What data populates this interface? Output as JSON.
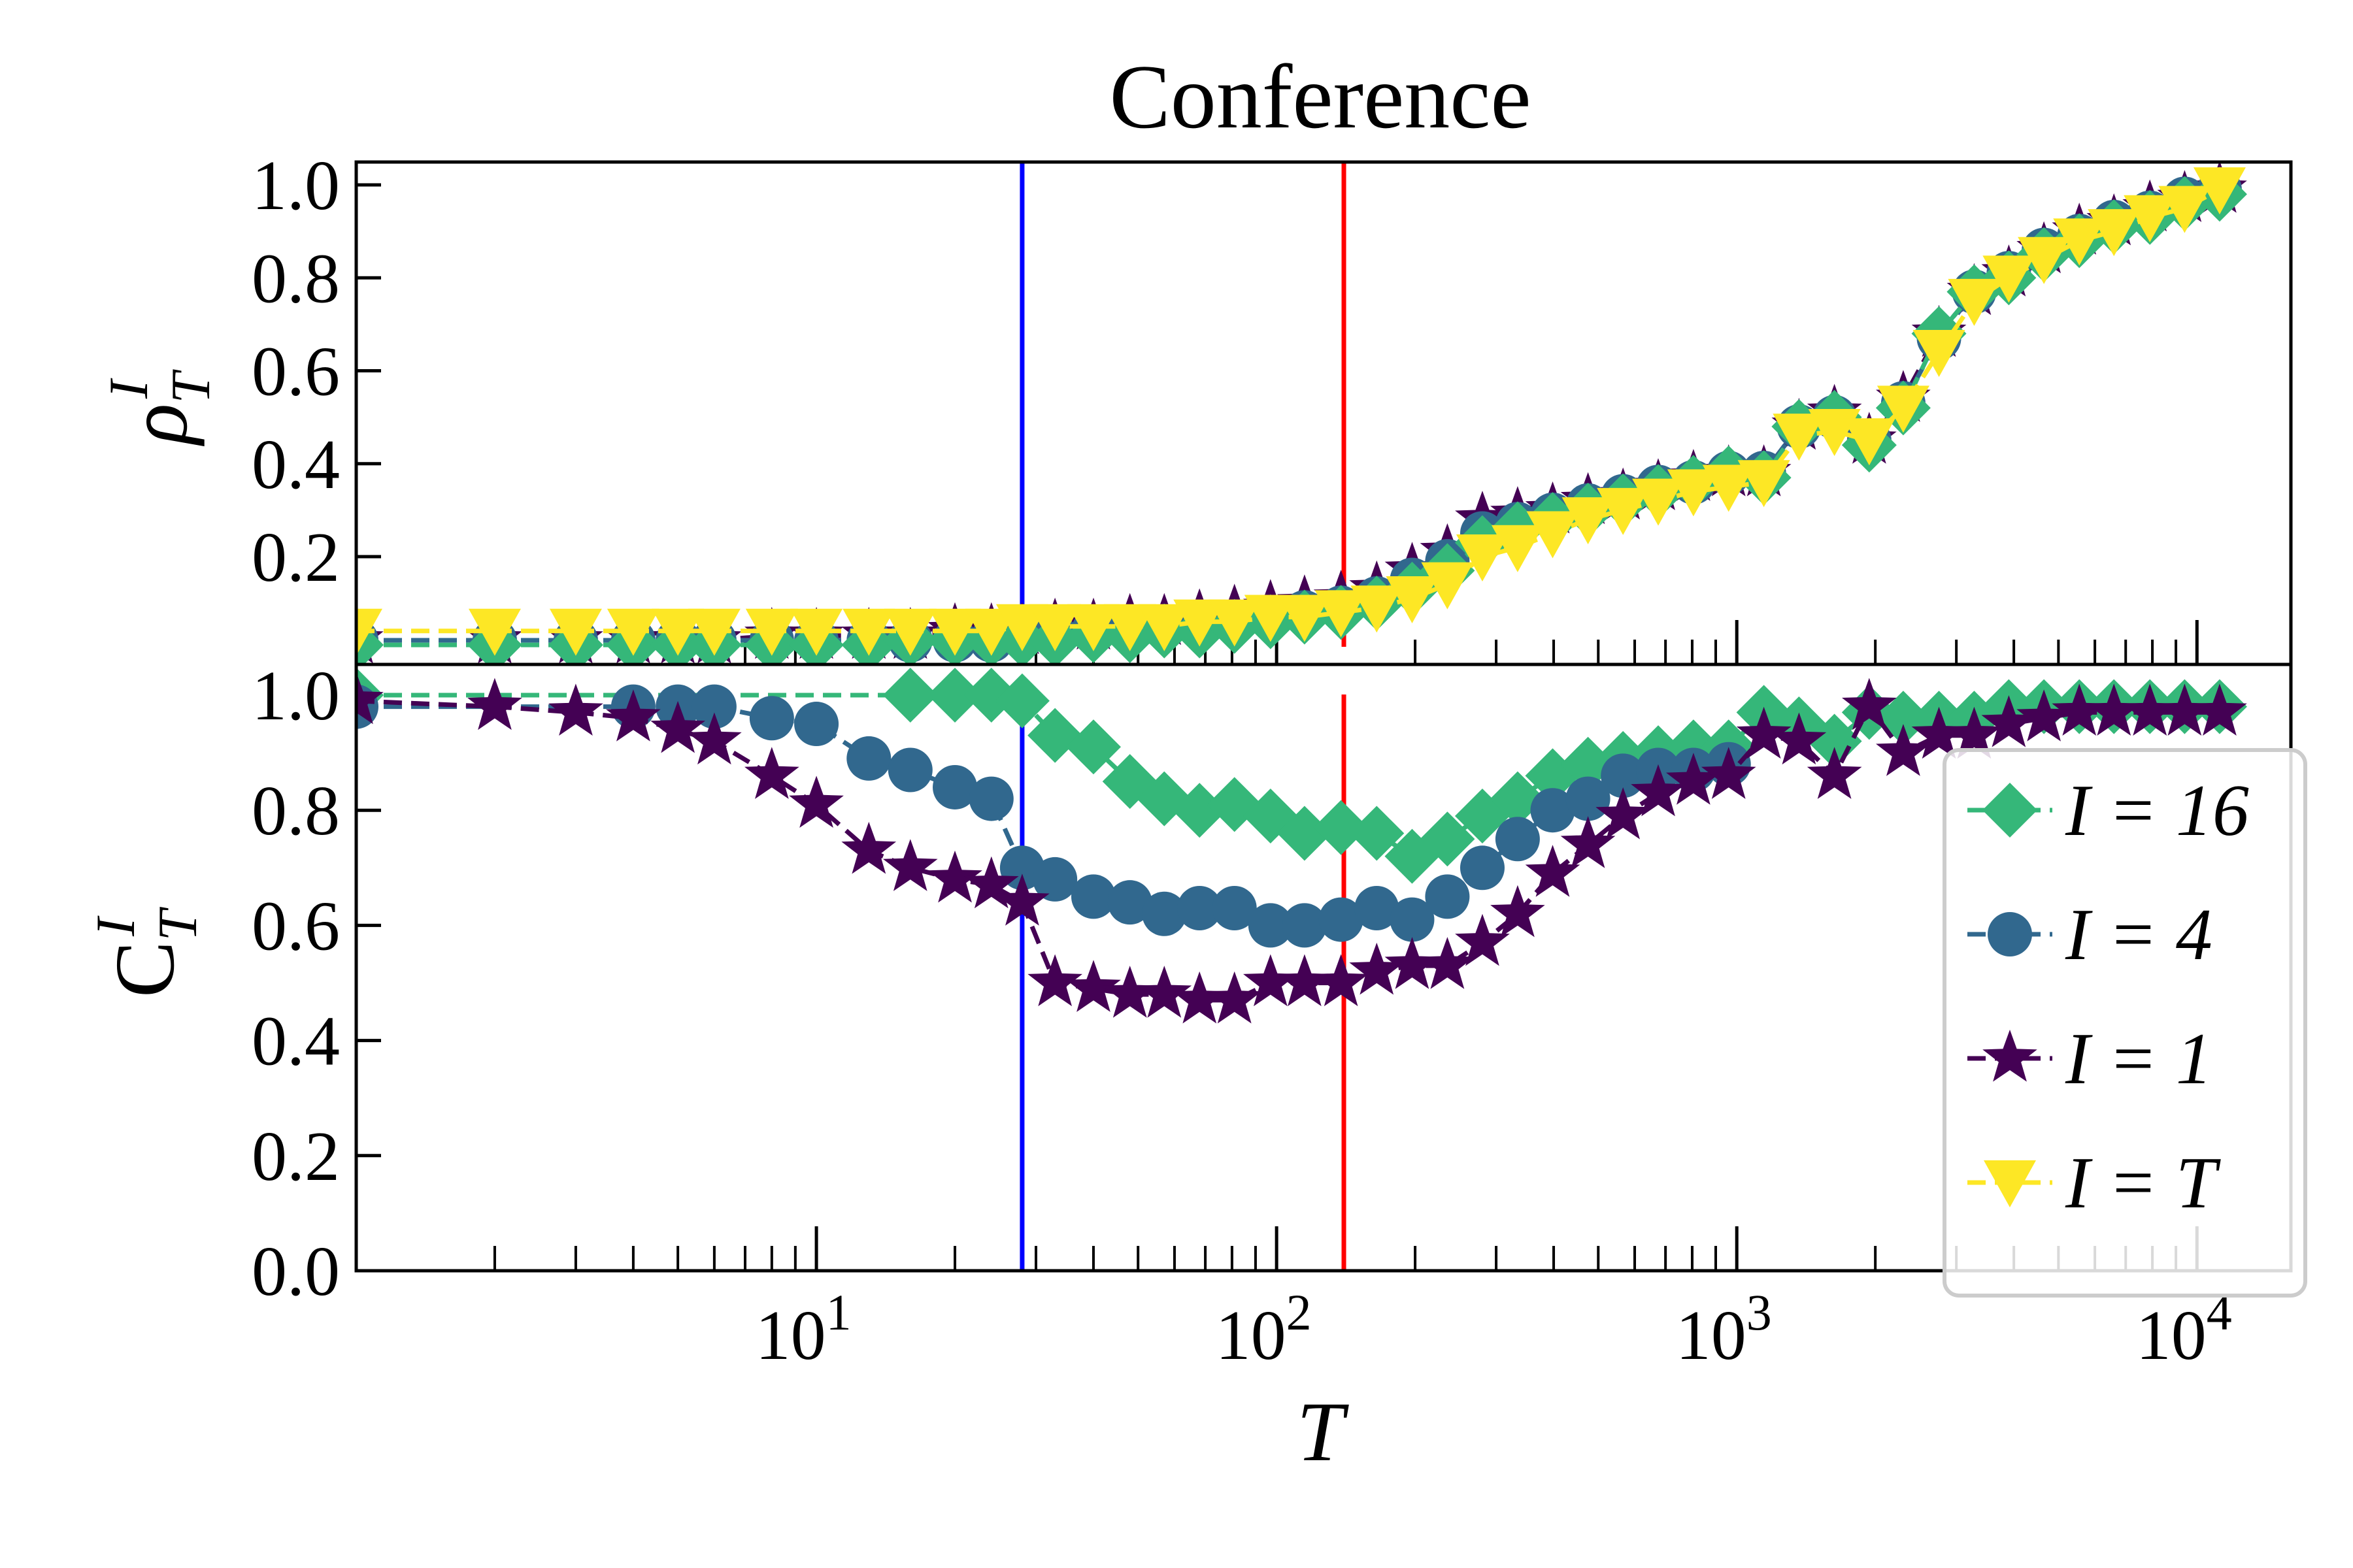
{
  "chart_data": [
    {
      "panel": "top",
      "type": "line",
      "title": "Conference",
      "xlabel": "",
      "ylabel": "ρ_T^I",
      "xscale": "log",
      "xlim": [
        1,
        16000
      ],
      "ylim": [
        0.0,
        1.05
      ],
      "yticks": [
        "0.2",
        "0.4",
        "0.6",
        "0.8",
        "1.0"
      ],
      "vlines": [
        {
          "x": 28,
          "color": "#0000ff"
        },
        {
          "x": 140,
          "color": "#ff0000"
        }
      ],
      "series": [
        {
          "name": "I = 1",
          "color": "#440154",
          "marker": "star",
          "x": [
            1,
            2,
            3,
            4,
            5,
            6,
            8,
            10,
            13,
            16,
            20,
            24,
            28,
            33,
            40,
            48,
            57,
            68,
            81,
            97,
            115,
            138,
            165,
            197,
            235,
            280,
            334,
            398,
            475,
            566,
            675,
            805,
            960,
            1145,
            1365,
            1630,
            1940,
            2300,
            2750,
            3280,
            3900,
            4650,
            5550,
            6600,
            7900,
            9400,
            11200
          ],
          "y": [
            0.02,
            0.02,
            0.02,
            0.02,
            0.02,
            0.02,
            0.03,
            0.03,
            0.03,
            0.03,
            0.04,
            0.04,
            0.04,
            0.05,
            0.05,
            0.06,
            0.06,
            0.07,
            0.08,
            0.09,
            0.1,
            0.11,
            0.13,
            0.17,
            0.21,
            0.28,
            0.29,
            0.3,
            0.32,
            0.33,
            0.35,
            0.37,
            0.38,
            0.38,
            0.48,
            0.51,
            0.45,
            0.54,
            0.68,
            0.77,
            0.81,
            0.86,
            0.9,
            0.92,
            0.95,
            0.97,
            0.99
          ]
        },
        {
          "name": "I = 4",
          "color": "#31688e",
          "marker": "circle",
          "x": [
            1,
            2,
            3,
            4,
            5,
            6,
            8,
            10,
            13,
            16,
            20,
            24,
            28,
            33,
            40,
            48,
            57,
            68,
            81,
            97,
            115,
            138,
            165,
            197,
            235,
            280,
            334,
            398,
            475,
            566,
            675,
            805,
            960,
            1145,
            1365,
            1630,
            1940,
            2300,
            2750,
            3280,
            3900,
            4650,
            5550,
            6600,
            7900,
            9400,
            11200
          ],
          "y": [
            0.02,
            0.02,
            0.02,
            0.02,
            0.02,
            0.02,
            0.02,
            0.02,
            0.02,
            0.02,
            0.02,
            0.02,
            0.03,
            0.03,
            0.04,
            0.04,
            0.05,
            0.05,
            0.06,
            0.07,
            0.08,
            0.09,
            0.11,
            0.15,
            0.19,
            0.25,
            0.27,
            0.29,
            0.31,
            0.33,
            0.35,
            0.36,
            0.38,
            0.38,
            0.48,
            0.5,
            0.45,
            0.53,
            0.67,
            0.77,
            0.81,
            0.86,
            0.89,
            0.92,
            0.94,
            0.97,
            0.99
          ]
        },
        {
          "name": "I = 16",
          "color": "#35b779",
          "marker": "diamond",
          "x": [
            1,
            2,
            3,
            4,
            5,
            6,
            8,
            10,
            13,
            16,
            20,
            24,
            28,
            33,
            40,
            48,
            57,
            68,
            81,
            97,
            115,
            138,
            165,
            197,
            235,
            280,
            334,
            398,
            475,
            566,
            675,
            805,
            960,
            1145,
            1365,
            1630,
            1940,
            2300,
            2750,
            3280,
            3900,
            4650,
            5550,
            6600,
            7900,
            9400,
            11200
          ],
          "y": [
            0.01,
            0.01,
            0.01,
            0.01,
            0.01,
            0.01,
            0.01,
            0.01,
            0.01,
            0.02,
            0.02,
            0.02,
            0.02,
            0.02,
            0.03,
            0.03,
            0.04,
            0.04,
            0.05,
            0.06,
            0.07,
            0.08,
            0.1,
            0.13,
            0.17,
            0.23,
            0.26,
            0.28,
            0.3,
            0.32,
            0.34,
            0.36,
            0.38,
            0.37,
            0.48,
            0.5,
            0.44,
            0.52,
            0.68,
            0.77,
            0.8,
            0.85,
            0.88,
            0.91,
            0.93,
            0.96,
            0.98
          ]
        },
        {
          "name": "I = T",
          "color": "#fde725",
          "marker": "triangle-down",
          "x": [
            1,
            2,
            3,
            4,
            5,
            6,
            8,
            10,
            13,
            16,
            20,
            24,
            28,
            33,
            40,
            48,
            57,
            68,
            81,
            97,
            115,
            138,
            165,
            197,
            235,
            280,
            334,
            398,
            475,
            566,
            675,
            805,
            960,
            1145,
            1365,
            1630,
            1940,
            2300,
            2750,
            3280,
            3900,
            4650,
            5550,
            6600,
            7900,
            9400,
            11200
          ],
          "y": [
            0.04,
            0.04,
            0.04,
            0.04,
            0.04,
            0.04,
            0.04,
            0.04,
            0.04,
            0.04,
            0.04,
            0.04,
            0.05,
            0.05,
            0.05,
            0.05,
            0.05,
            0.06,
            0.06,
            0.07,
            0.07,
            0.08,
            0.09,
            0.11,
            0.14,
            0.2,
            0.22,
            0.25,
            0.28,
            0.3,
            0.32,
            0.34,
            0.35,
            0.36,
            0.46,
            0.47,
            0.45,
            0.52,
            0.64,
            0.75,
            0.8,
            0.84,
            0.88,
            0.9,
            0.93,
            0.95,
            0.99
          ]
        }
      ]
    },
    {
      "panel": "bottom",
      "type": "line",
      "title": "",
      "xlabel": "T",
      "ylabel": "C_T^I",
      "xscale": "log",
      "xlim": [
        1,
        16000
      ],
      "ylim": [
        0.0,
        1.05
      ],
      "xticks": [
        "10^1",
        "10^2",
        "10^3",
        "10^4"
      ],
      "yticks": [
        "0.0",
        "0.2",
        "0.4",
        "0.6",
        "0.8",
        "1.0"
      ],
      "vlines": [
        {
          "x": 28,
          "color": "#0000ff"
        },
        {
          "x": 140,
          "color": "#ff0000"
        }
      ],
      "series": [
        {
          "name": "I = 16",
          "color": "#35b779",
          "marker": "diamond",
          "x": [
            1,
            16,
            20,
            24,
            28,
            33,
            40,
            48,
            57,
            68,
            81,
            97,
            115,
            138,
            165,
            197,
            235,
            280,
            334,
            398,
            475,
            566,
            675,
            805,
            960,
            1145,
            1365,
            1630,
            1940,
            2300,
            2750,
            3280,
            3900,
            4650,
            5550,
            6600,
            7900,
            9400,
            11200
          ],
          "y": [
            1.0,
            1.0,
            1.0,
            1.0,
            0.99,
            0.93,
            0.91,
            0.85,
            0.82,
            0.8,
            0.81,
            0.79,
            0.76,
            0.77,
            0.76,
            0.72,
            0.75,
            0.79,
            0.82,
            0.86,
            0.88,
            0.89,
            0.9,
            0.91,
            0.91,
            0.97,
            0.95,
            0.92,
            0.97,
            0.96,
            0.96,
            0.96,
            0.98,
            0.98,
            0.98,
            0.98,
            0.98,
            0.98,
            0.98
          ]
        },
        {
          "name": "I = 4",
          "color": "#31688e",
          "marker": "circle",
          "x": [
            1,
            4,
            5,
            6,
            8,
            10,
            13,
            16,
            20,
            24,
            28,
            33,
            40,
            48,
            57,
            68,
            81,
            97,
            115,
            138,
            165,
            197,
            235,
            280,
            334,
            398,
            475,
            566,
            675,
            805,
            960
          ],
          "y": [
            0.98,
            0.98,
            0.98,
            0.98,
            0.96,
            0.95,
            0.89,
            0.87,
            0.84,
            0.82,
            0.7,
            0.68,
            0.65,
            0.64,
            0.62,
            0.63,
            0.63,
            0.6,
            0.6,
            0.61,
            0.63,
            0.61,
            0.65,
            0.7,
            0.75,
            0.8,
            0.82,
            0.86,
            0.87,
            0.87,
            0.88
          ]
        },
        {
          "name": "I = 1",
          "color": "#440154",
          "marker": "star",
          "x": [
            1,
            2,
            3,
            4,
            5,
            6,
            8,
            10,
            13,
            16,
            20,
            24,
            28,
            33,
            40,
            48,
            57,
            68,
            81,
            97,
            115,
            138,
            165,
            197,
            235,
            280,
            334,
            398,
            475,
            566,
            675,
            805,
            960,
            1145,
            1365,
            1630,
            1940,
            2300,
            2750,
            3280,
            3900,
            4650,
            5550,
            6600,
            7900,
            9400,
            11200
          ],
          "y": [
            0.99,
            0.98,
            0.97,
            0.96,
            0.94,
            0.92,
            0.86,
            0.81,
            0.73,
            0.7,
            0.68,
            0.67,
            0.64,
            0.5,
            0.49,
            0.48,
            0.48,
            0.47,
            0.47,
            0.5,
            0.5,
            0.5,
            0.52,
            0.53,
            0.53,
            0.57,
            0.62,
            0.69,
            0.74,
            0.79,
            0.83,
            0.85,
            0.86,
            0.93,
            0.92,
            0.86,
            0.98,
            0.9,
            0.93,
            0.93,
            0.95,
            0.96,
            0.97,
            0.97,
            0.97,
            0.97,
            0.97
          ]
        }
      ]
    }
  ],
  "legend": {
    "placement": "right",
    "entries": [
      {
        "label": "I = 16",
        "color": "#35b779",
        "marker": "diamond"
      },
      {
        "label": "I = 4",
        "color": "#31688e",
        "marker": "circle"
      },
      {
        "label": "I = 1",
        "color": "#440154",
        "marker": "star"
      },
      {
        "label": "I = T",
        "color": "#fde725",
        "marker": "triangle-down"
      }
    ]
  }
}
